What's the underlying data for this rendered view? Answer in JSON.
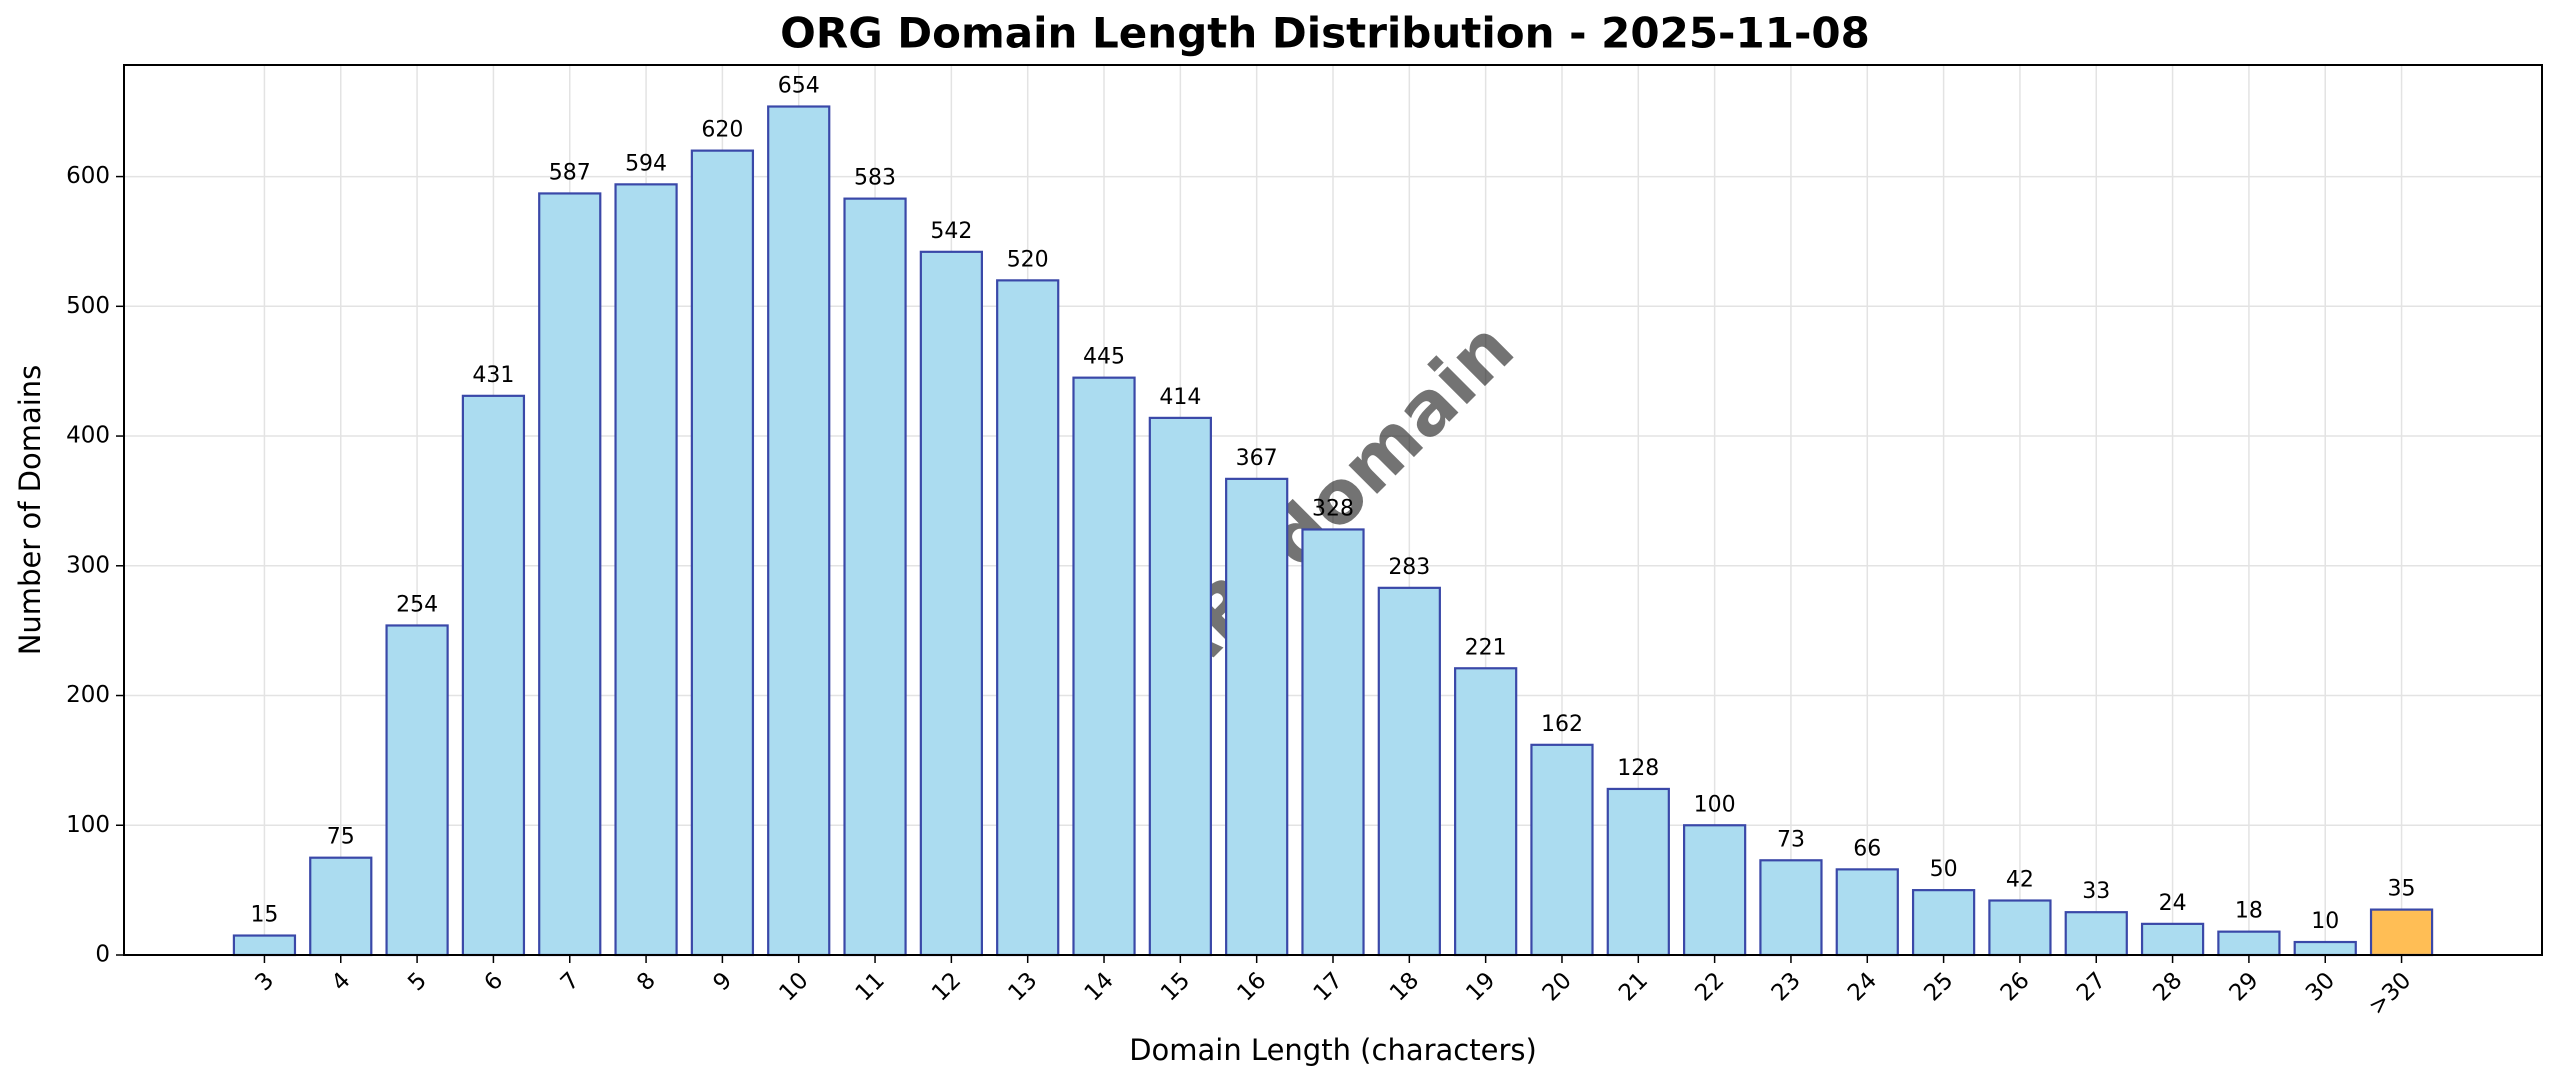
{
  "chart_data": {
    "type": "bar",
    "title": "ORG Domain Length Distribution - 2025-11-08",
    "xlabel": "Domain Length (characters)",
    "ylabel": "Number of Domains",
    "watermark": "ABTdomain",
    "categories": [
      "3",
      "4",
      "5",
      "6",
      "7",
      "8",
      "9",
      "10",
      "11",
      "12",
      "13",
      "14",
      "15",
      "16",
      "17",
      "18",
      "19",
      "20",
      "21",
      "22",
      "23",
      "24",
      "25",
      "26",
      "27",
      "28",
      "29",
      "30",
      ">30"
    ],
    "values": [
      15,
      75,
      254,
      431,
      587,
      594,
      620,
      654,
      583,
      542,
      520,
      445,
      414,
      367,
      328,
      283,
      221,
      162,
      128,
      100,
      73,
      66,
      50,
      42,
      33,
      24,
      18,
      10,
      35
    ],
    "colors": [
      "#abdcf0",
      "#abdcf0",
      "#abdcf0",
      "#abdcf0",
      "#abdcf0",
      "#abdcf0",
      "#abdcf0",
      "#abdcf0",
      "#abdcf0",
      "#abdcf0",
      "#abdcf0",
      "#abdcf0",
      "#abdcf0",
      "#abdcf0",
      "#abdcf0",
      "#abdcf0",
      "#abdcf0",
      "#abdcf0",
      "#abdcf0",
      "#abdcf0",
      "#abdcf0",
      "#abdcf0",
      "#abdcf0",
      "#abdcf0",
      "#abdcf0",
      "#abdcf0",
      "#abdcf0",
      "#abdcf0",
      "#ffbe55"
    ],
    "edgecolor": "#3a48a8",
    "ylim": [
      0,
      686
    ],
    "yticks": [
      0,
      100,
      200,
      300,
      400,
      500,
      600
    ],
    "grid": true
  }
}
